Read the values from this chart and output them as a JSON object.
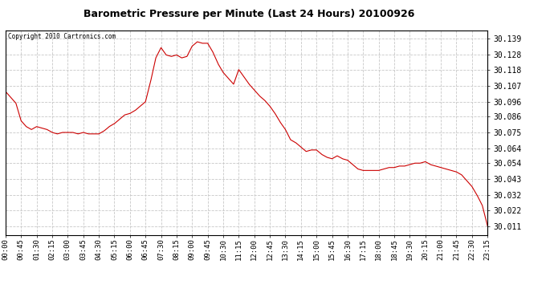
{
  "title": "Barometric Pressure per Minute (Last 24 Hours) 20100926",
  "copyright": "Copyright 2010 Cartronics.com",
  "line_color": "#cc0000",
  "background_color": "#ffffff",
  "plot_bg_color": "#ffffff",
  "grid_color": "#c8c8c8",
  "yticks": [
    30.011,
    30.022,
    30.032,
    30.043,
    30.054,
    30.064,
    30.075,
    30.086,
    30.096,
    30.107,
    30.118,
    30.128,
    30.139
  ],
  "ylim": [
    30.005,
    30.145
  ],
  "xtick_labels": [
    "00:00",
    "00:45",
    "01:30",
    "02:15",
    "03:00",
    "03:45",
    "04:30",
    "05:15",
    "06:00",
    "06:45",
    "07:30",
    "08:15",
    "09:00",
    "09:45",
    "10:30",
    "11:15",
    "12:00",
    "12:45",
    "13:30",
    "14:15",
    "15:00",
    "15:45",
    "16:30",
    "17:15",
    "18:00",
    "18:45",
    "19:30",
    "20:15",
    "21:00",
    "21:45",
    "22:30",
    "23:15"
  ],
  "key_points": {
    "00:00": 30.103,
    "00:15": 30.099,
    "00:30": 30.095,
    "00:45": 30.083,
    "01:00": 30.079,
    "01:15": 30.077,
    "01:30": 30.079,
    "01:45": 30.078,
    "02:00": 30.077,
    "02:15": 30.075,
    "02:30": 30.074,
    "02:45": 30.075,
    "03:00": 30.075,
    "03:15": 30.075,
    "03:30": 30.074,
    "03:45": 30.075,
    "04:00": 30.074,
    "04:15": 30.074,
    "04:30": 30.074,
    "04:45": 30.076,
    "05:00": 30.079,
    "05:15": 30.081,
    "05:30": 30.084,
    "05:45": 30.087,
    "06:00": 30.088,
    "06:15": 30.09,
    "06:30": 30.093,
    "06:45": 30.096,
    "07:00": 30.11,
    "07:15": 30.126,
    "07:30": 30.133,
    "07:45": 30.128,
    "08:00": 30.127,
    "08:15": 30.128,
    "08:30": 30.126,
    "08:45": 30.127,
    "09:00": 30.134,
    "09:15": 30.137,
    "09:30": 30.136,
    "09:45": 30.136,
    "10:00": 30.13,
    "10:15": 30.122,
    "10:30": 30.116,
    "10:45": 30.112,
    "11:00": 30.108,
    "11:15": 30.118,
    "11:30": 30.113,
    "11:45": 30.108,
    "12:00": 30.104,
    "12:15": 30.1,
    "12:30": 30.097,
    "12:45": 30.093,
    "13:00": 30.088,
    "13:15": 30.082,
    "13:30": 30.077,
    "13:45": 30.07,
    "14:00": 30.068,
    "14:15": 30.065,
    "14:30": 30.062,
    "14:45": 30.063,
    "15:00": 30.063,
    "15:15": 30.06,
    "15:30": 30.058,
    "15:45": 30.057,
    "16:00": 30.059,
    "16:15": 30.057,
    "16:30": 30.056,
    "16:45": 30.053,
    "17:00": 30.05,
    "17:15": 30.049,
    "17:30": 30.049,
    "17:45": 30.049,
    "18:00": 30.049,
    "18:15": 30.05,
    "18:30": 30.051,
    "18:45": 30.051,
    "19:00": 30.052,
    "19:15": 30.052,
    "19:30": 30.053,
    "19:45": 30.054,
    "20:00": 30.054,
    "20:15": 30.055,
    "20:30": 30.053,
    "20:45": 30.052,
    "21:00": 30.051,
    "21:15": 30.05,
    "21:30": 30.049,
    "21:45": 30.048,
    "22:00": 30.046,
    "22:15": 30.042,
    "22:30": 30.038,
    "22:45": 30.032,
    "23:00": 30.025,
    "23:15": 30.011
  }
}
